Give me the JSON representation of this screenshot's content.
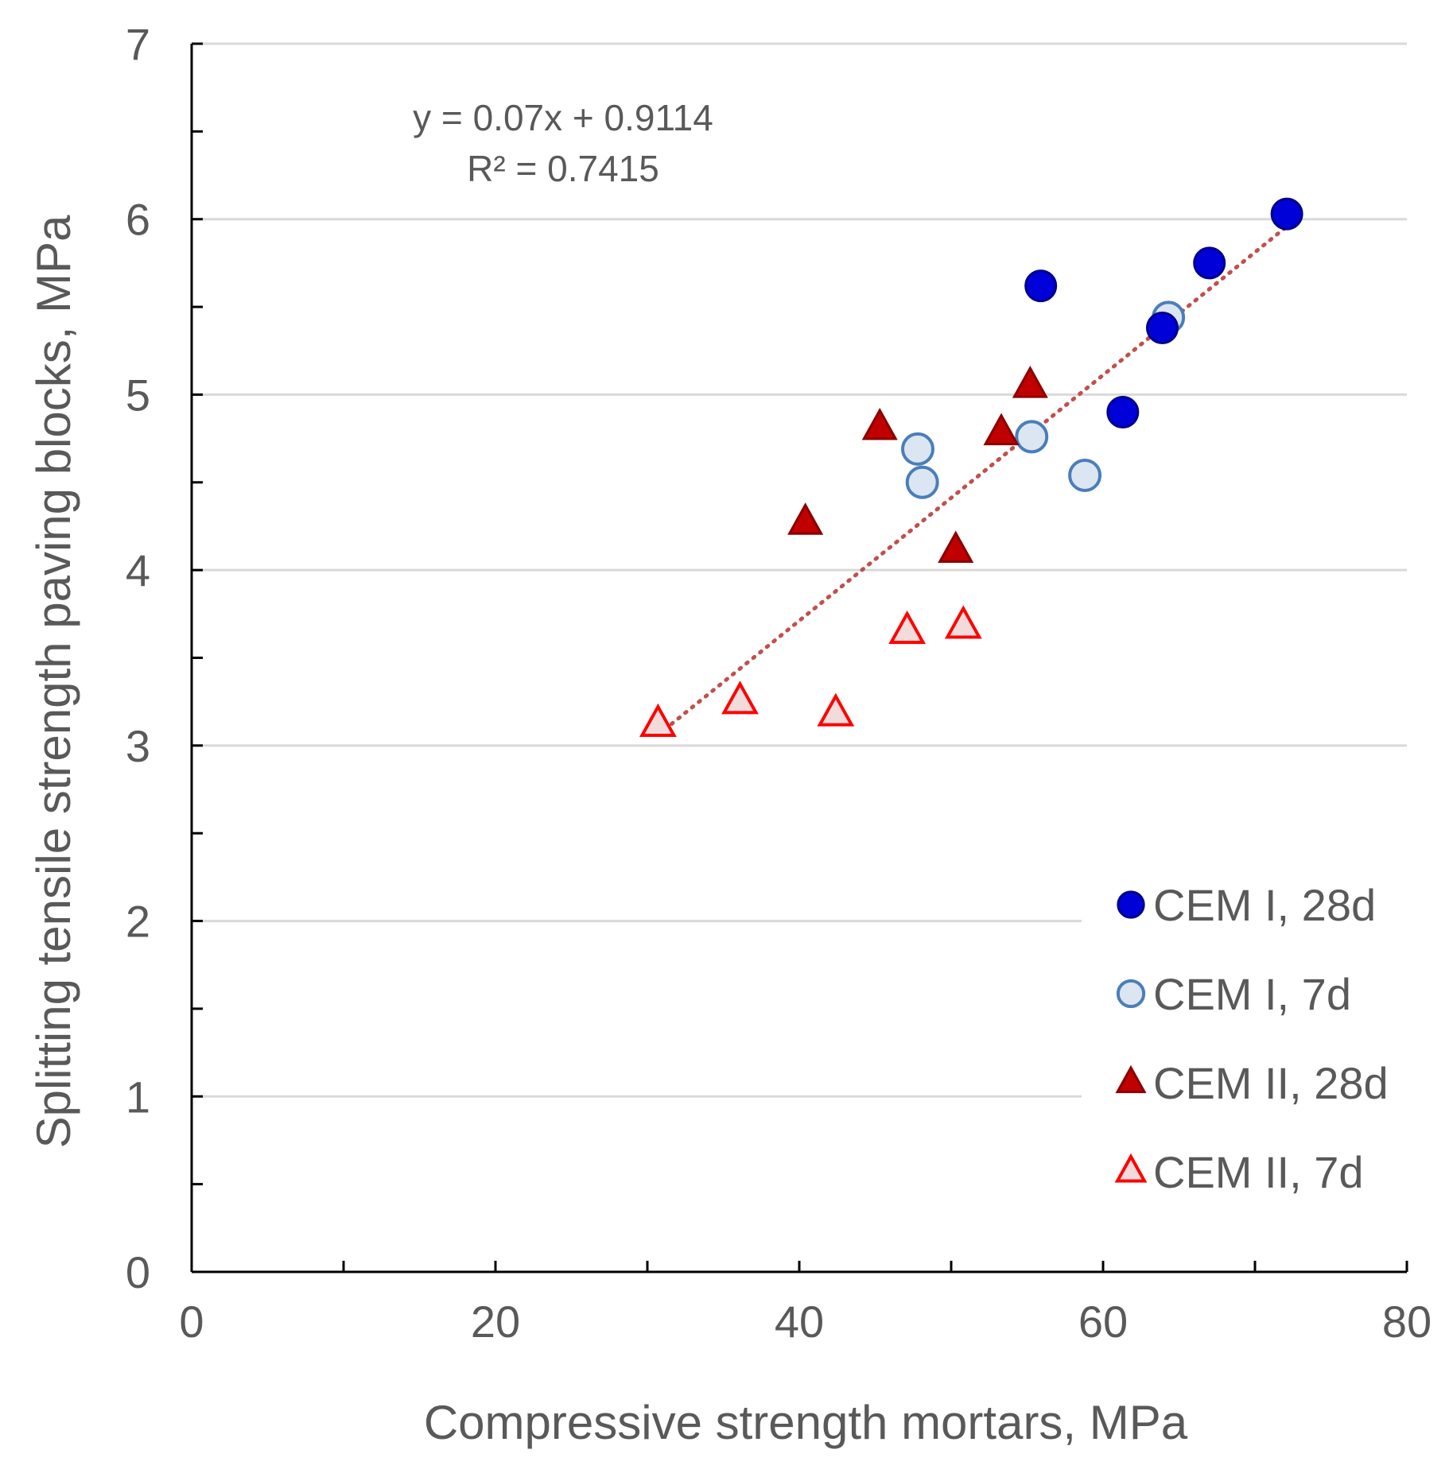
{
  "chart_data": {
    "type": "scatter",
    "title": "",
    "xlabel": "Compressive strength mortars, MPa",
    "ylabel": "Splitting tensile strength paving blocks, MPa",
    "xlim": [
      0,
      80
    ],
    "ylim": [
      0,
      7
    ],
    "x_major_ticks": [
      0,
      20,
      40,
      60,
      80
    ],
    "x_minor_ticks": [
      10,
      30,
      50,
      70
    ],
    "x_tick_labels": [
      "0",
      "20",
      "40",
      "60",
      "80"
    ],
    "y_major_ticks": [
      0,
      1,
      2,
      3,
      4,
      5,
      6,
      7
    ],
    "y_minor_ticks": [
      0.5,
      1.5,
      2.5,
      3.5,
      4.5,
      5.5,
      6.5
    ],
    "y_tick_labels": [
      "0",
      "1",
      "2",
      "3",
      "4",
      "5",
      "6",
      "7"
    ],
    "grid": "horizontal major",
    "legend_position": "lower-right",
    "series": [
      {
        "name": "CEM I, 28d",
        "marker": "circle",
        "filled": true,
        "color": "#0000d8",
        "edge_color": "#00008b",
        "points": [
          {
            "x": 55.9,
            "y": 5.62
          },
          {
            "x": 61.3,
            "y": 4.9
          },
          {
            "x": 63.9,
            "y": 5.38
          },
          {
            "x": 67.0,
            "y": 5.75
          },
          {
            "x": 72.1,
            "y": 6.03
          }
        ]
      },
      {
        "name": "CEM I, 7d",
        "marker": "circle",
        "filled": false,
        "color": "#dce6f2",
        "edge_color": "#4a7ebb",
        "points": [
          {
            "x": 47.8,
            "y": 4.69
          },
          {
            "x": 48.1,
            "y": 4.5
          },
          {
            "x": 55.3,
            "y": 4.76
          },
          {
            "x": 58.8,
            "y": 4.54
          },
          {
            "x": 64.3,
            "y": 5.44
          }
        ]
      },
      {
        "name": "CEM II, 28d",
        "marker": "triangle",
        "filled": true,
        "color": "#c00000",
        "edge_color": "#8b0000",
        "points": [
          {
            "x": 40.4,
            "y": 4.27
          },
          {
            "x": 45.3,
            "y": 4.81
          },
          {
            "x": 50.3,
            "y": 4.11
          },
          {
            "x": 53.3,
            "y": 4.78
          },
          {
            "x": 55.2,
            "y": 5.05
          }
        ]
      },
      {
        "name": "CEM II, 7d",
        "marker": "triangle",
        "filled": false,
        "color": "#f2dcdb",
        "edge_color": "#ff0000",
        "points": [
          {
            "x": 30.7,
            "y": 3.12
          },
          {
            "x": 36.1,
            "y": 3.25
          },
          {
            "x": 42.4,
            "y": 3.18
          },
          {
            "x": 47.1,
            "y": 3.65
          },
          {
            "x": 50.8,
            "y": 3.68
          }
        ]
      }
    ],
    "trendline": {
      "type": "linear",
      "slope": 0.07,
      "intercept": 0.9114,
      "x_range": [
        30.7,
        72.1
      ],
      "color": "#c0504d",
      "style": "dotted",
      "equation_label": "y = 0.07x + 0.9114",
      "r2_label": "R² = 0.7415"
    },
    "legend": [
      {
        "label": "CEM I, 28d"
      },
      {
        "label": "CEM I, 7d"
      },
      {
        "label": "CEM II, 28d"
      },
      {
        "label": "CEM II, 7d"
      }
    ]
  }
}
